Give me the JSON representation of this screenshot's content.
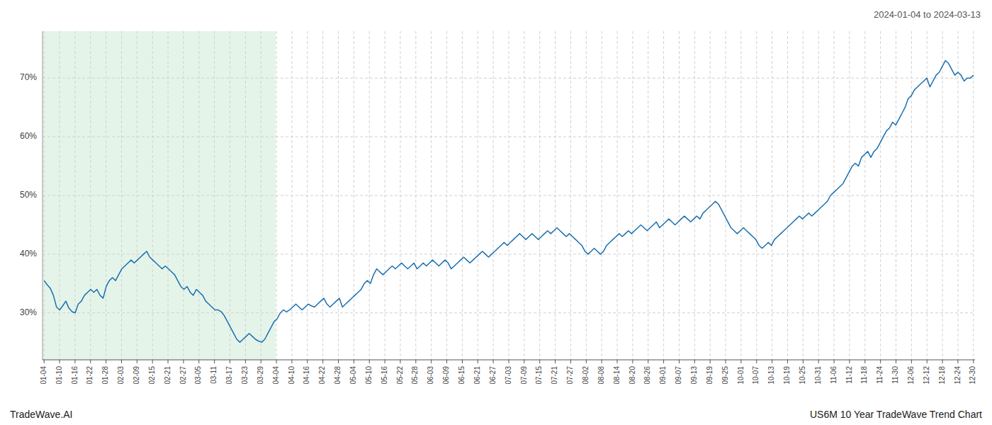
{
  "chart_data": {
    "type": "line",
    "title": "2024-01-04 to 2024-03-13",
    "annotations": [
      "TradeWave.AI",
      "US6M 10 Year TradeWave Trend Chart"
    ],
    "color": "#1a6faf",
    "grid": true,
    "shade": {
      "from": -0.5,
      "to": 74.5,
      "color": "#d4edda"
    },
    "xlim": [
      -0.5,
      299.5
    ],
    "xticks": [
      {
        "value": 0,
        "label": "01-04"
      },
      {
        "value": 4.983333,
        "label": "01-10"
      },
      {
        "value": 9.966667,
        "label": "01-16"
      },
      {
        "value": 14.95,
        "label": "01-22"
      },
      {
        "value": 19.933333,
        "label": "01-28"
      },
      {
        "value": 24.916667,
        "label": "02-03"
      },
      {
        "value": 29.9,
        "label": "02-09"
      },
      {
        "value": 34.883333,
        "label": "02-15"
      },
      {
        "value": 39.866667,
        "label": "02-21"
      },
      {
        "value": 44.85,
        "label": "02-27"
      },
      {
        "value": 49.833333,
        "label": "03-05"
      },
      {
        "value": 54.816667,
        "label": "03-11"
      },
      {
        "value": 59.8,
        "label": "03-17"
      },
      {
        "value": 64.783333,
        "label": "03-23"
      },
      {
        "value": 69.766667,
        "label": "03-29"
      },
      {
        "value": 74.75,
        "label": "04-04"
      },
      {
        "value": 79.733333,
        "label": "04-10"
      },
      {
        "value": 84.716667,
        "label": "04-16"
      },
      {
        "value": 89.7,
        "label": "04-22"
      },
      {
        "value": 94.683333,
        "label": "04-28"
      },
      {
        "value": 99.666667,
        "label": "05-04"
      },
      {
        "value": 104.65,
        "label": "05-10"
      },
      {
        "value": 109.633333,
        "label": "05-16"
      },
      {
        "value": 114.616667,
        "label": "05-22"
      },
      {
        "value": 119.6,
        "label": "05-28"
      },
      {
        "value": 124.583333,
        "label": "06-03"
      },
      {
        "value": 129.566667,
        "label": "06-09"
      },
      {
        "value": 134.55,
        "label": "06-15"
      },
      {
        "value": 139.533333,
        "label": "06-21"
      },
      {
        "value": 144.516667,
        "label": "06-27"
      },
      {
        "value": 149.5,
        "label": "07-03"
      },
      {
        "value": 154.483333,
        "label": "07-09"
      },
      {
        "value": 159.466667,
        "label": "07-15"
      },
      {
        "value": 164.45,
        "label": "07-21"
      },
      {
        "value": 169.433333,
        "label": "07-27"
      },
      {
        "value": 174.416667,
        "label": "08-02"
      },
      {
        "value": 179.4,
        "label": "08-08"
      },
      {
        "value": 184.383333,
        "label": "08-14"
      },
      {
        "value": 189.366667,
        "label": "08-20"
      },
      {
        "value": 194.35,
        "label": "08-26"
      },
      {
        "value": 199.333333,
        "label": "09-01"
      },
      {
        "value": 204.316667,
        "label": "09-07"
      },
      {
        "value": 209.3,
        "label": "09-13"
      },
      {
        "value": 214.283333,
        "label": "09-19"
      },
      {
        "value": 219.266667,
        "label": "09-25"
      },
      {
        "value": 224.25,
        "label": "10-01"
      },
      {
        "value": 229.233333,
        "label": "10-07"
      },
      {
        "value": 234.216667,
        "label": "10-13"
      },
      {
        "value": 239.2,
        "label": "10-19"
      },
      {
        "value": 244.183333,
        "label": "10-25"
      },
      {
        "value": 249.166667,
        "label": "10-31"
      },
      {
        "value": 254.15,
        "label": "11-06"
      },
      {
        "value": 259.133333,
        "label": "11-12"
      },
      {
        "value": 264.116667,
        "label": "11-18"
      },
      {
        "value": 269.1,
        "label": "11-24"
      },
      {
        "value": 274.083333,
        "label": "11-30"
      },
      {
        "value": 279.066667,
        "label": "12-06"
      },
      {
        "value": 284.05,
        "label": "12-12"
      },
      {
        "value": 289.033333,
        "label": "12-18"
      },
      {
        "value": 294.016667,
        "label": "12-24"
      },
      {
        "value": 299,
        "label": "12-30"
      }
    ],
    "ylim": [
      22,
      78
    ],
    "yticks": [
      {
        "value": 30,
        "label": "30%"
      },
      {
        "value": 40,
        "label": "40%"
      },
      {
        "value": 50,
        "label": "50%"
      },
      {
        "value": 60,
        "label": "60%"
      },
      {
        "value": 70,
        "label": "70%"
      }
    ],
    "values": [
      35.5,
      34.8,
      34.2,
      33.0,
      31.0,
      30.5,
      31.2,
      32.0,
      30.8,
      30.2,
      30.0,
      31.5,
      32.0,
      33.0,
      33.5,
      34.0,
      33.5,
      34.0,
      33.0,
      32.5,
      34.5,
      35.5,
      36.0,
      35.5,
      36.5,
      37.5,
      38.0,
      38.5,
      39.0,
      38.5,
      39.0,
      39.5,
      40.0,
      40.5,
      39.5,
      39.0,
      38.5,
      38.0,
      37.5,
      38.0,
      37.5,
      37.0,
      36.5,
      35.5,
      34.5,
      34.0,
      34.5,
      33.5,
      33.0,
      34.0,
      33.5,
      33.0,
      32.0,
      31.5,
      31.0,
      30.5,
      30.5,
      30.2,
      29.5,
      28.5,
      27.5,
      26.5,
      25.5,
      25.0,
      25.5,
      26.0,
      26.5,
      26.0,
      25.5,
      25.2,
      25.0,
      25.5,
      26.5,
      27.5,
      28.5,
      29.0,
      30.0,
      30.5,
      30.2,
      30.5,
      31.0,
      31.5,
      31.0,
      30.5,
      31.0,
      31.5,
      31.2,
      31.0,
      31.5,
      32.0,
      32.5,
      31.5,
      31.0,
      31.5,
      32.0,
      32.5,
      31.0,
      31.5,
      32.0,
      32.5,
      33.0,
      33.5,
      34.0,
      35.0,
      35.5,
      35.0,
      36.5,
      37.5,
      37.0,
      36.5,
      37.0,
      37.5,
      38.0,
      37.5,
      38.0,
      38.5,
      38.0,
      37.5,
      38.0,
      38.5,
      37.5,
      38.0,
      38.5,
      38.0,
      38.5,
      39.0,
      38.5,
      38.0,
      38.5,
      39.0,
      38.5,
      37.5,
      38.0,
      38.5,
      39.0,
      39.5,
      39.0,
      38.5,
      39.0,
      39.5,
      40.0,
      40.5,
      40.0,
      39.5,
      40.0,
      40.5,
      41.0,
      41.5,
      42.0,
      41.5,
      42.0,
      42.5,
      43.0,
      43.5,
      43.0,
      42.5,
      43.0,
      43.5,
      43.0,
      42.5,
      43.0,
      43.5,
      44.0,
      43.5,
      44.0,
      44.5,
      44.0,
      43.5,
      43.0,
      43.5,
      43.0,
      42.5,
      42.0,
      41.5,
      40.5,
      40.0,
      40.5,
      41.0,
      40.5,
      40.0,
      40.5,
      41.5,
      42.0,
      42.5,
      43.0,
      43.5,
      43.0,
      43.5,
      44.0,
      43.5,
      44.0,
      44.5,
      45.0,
      44.5,
      44.0,
      44.5,
      45.0,
      45.5,
      44.5,
      45.0,
      45.5,
      46.0,
      45.5,
      45.0,
      45.5,
      46.0,
      46.5,
      46.0,
      45.5,
      46.0,
      46.5,
      46.0,
      47.0,
      47.5,
      48.0,
      48.5,
      49.0,
      48.5,
      47.5,
      46.5,
      45.5,
      44.5,
      44.0,
      43.5,
      44.0,
      44.5,
      44.0,
      43.5,
      43.0,
      42.5,
      41.5,
      41.0,
      41.5,
      42.0,
      41.5,
      42.5,
      43.0,
      43.5,
      44.0,
      44.5,
      45.0,
      45.5,
      46.0,
      46.5,
      46.0,
      46.5,
      47.0,
      46.5,
      47.0,
      47.5,
      48.0,
      48.5,
      49.0,
      50.0,
      50.5,
      51.0,
      51.5,
      52.0,
      53.0,
      54.0,
      55.0,
      55.5,
      55.0,
      56.5,
      57.0,
      57.5,
      56.5,
      57.5,
      58.0,
      59.0,
      60.0,
      61.0,
      61.5,
      62.5,
      62.0,
      63.0,
      64.0,
      65.0,
      66.5,
      67.0,
      68.0,
      68.5,
      69.0,
      69.5,
      70.0,
      68.5,
      69.5,
      70.5,
      71.0,
      72.0,
      73.0,
      72.5,
      71.5,
      70.5,
      71.0,
      70.5,
      69.5,
      70.0,
      70.0,
      70.5
    ]
  }
}
